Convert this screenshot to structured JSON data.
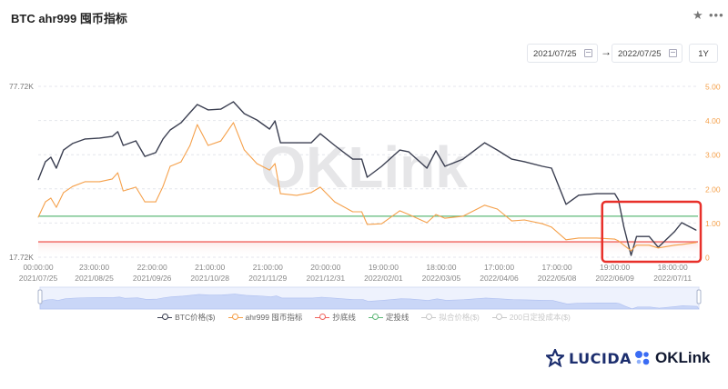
{
  "header": {
    "title": "BTC ahr999 囤币指标",
    "star_icon": "star-icon",
    "more_icon": "more-icon"
  },
  "controls": {
    "start_date": "2021/07/25",
    "end_date": "2022/07/25",
    "arrow": "→",
    "range_label": "1Y"
  },
  "watermark": "OKLink",
  "legend": [
    {
      "label": "BTC价格($)",
      "color": "#3b3f51",
      "active": true
    },
    {
      "label": "ahr999 囤币指标",
      "color": "#f5a04a",
      "active": true
    },
    {
      "label": "抄底线",
      "color": "#f0625c",
      "active": true
    },
    {
      "label": "定投线",
      "color": "#5fb878",
      "active": true
    },
    {
      "label": "拟合价格($)",
      "color": "#c8c8c8",
      "active": false
    },
    {
      "label": "200日定投成本($)",
      "color": "#c8c8c8",
      "active": false
    }
  ],
  "branding": {
    "lucida": "LUCIDA",
    "oklink": "OKLink"
  },
  "chart_data": {
    "type": "line",
    "x_ticks": [
      {
        "time": "00:00:00",
        "date": "2021/07/25"
      },
      {
        "time": "23:00:00",
        "date": "2021/08/25"
      },
      {
        "time": "22:00:00",
        "date": "2021/09/26"
      },
      {
        "time": "21:00:00",
        "date": "2021/10/28"
      },
      {
        "time": "21:00:00",
        "date": "2021/11/29"
      },
      {
        "time": "20:00:00",
        "date": "2021/12/31"
      },
      {
        "time": "19:00:00",
        "date": "2022/02/01"
      },
      {
        "time": "18:00:00",
        "date": "2022/03/05"
      },
      {
        "time": "17:00:00",
        "date": "2022/04/06"
      },
      {
        "time": "17:00:00",
        "date": "2022/05/08"
      },
      {
        "time": "19:00:00",
        "date": "2022/06/09"
      },
      {
        "time": "18:00:00",
        "date": "2022/07/11"
      }
    ],
    "xlim": [
      "2021-07-25",
      "2022-07-25"
    ],
    "left_axis": {
      "scale": "log",
      "range": [
        17.72,
        77.72
      ],
      "unit": "K",
      "tick_labels": [
        "77.72K",
        "17.72K"
      ]
    },
    "right_axis": {
      "scale": "linear",
      "range": [
        0,
        5
      ],
      "tick_labels": [
        "5.00",
        "4.00",
        "3.00",
        "2.00",
        "1.00",
        "0"
      ]
    },
    "grid": true,
    "x": [
      "2021-07-25",
      "2021-07-29",
      "2021-08-01",
      "2021-08-04",
      "2021-08-08",
      "2021-08-13",
      "2021-08-20",
      "2021-08-28",
      "2021-09-04",
      "2021-09-07",
      "2021-09-10",
      "2021-09-17",
      "2021-09-22",
      "2021-09-28",
      "2021-10-02",
      "2021-10-06",
      "2021-10-12",
      "2021-10-17",
      "2021-10-21",
      "2021-10-27",
      "2021-11-03",
      "2021-11-10",
      "2021-11-16",
      "2021-11-23",
      "2021-11-30",
      "2021-12-03",
      "2021-12-06",
      "2021-12-15",
      "2021-12-23",
      "2021-12-28",
      "2022-01-05",
      "2022-01-15",
      "2022-01-20",
      "2022-01-23",
      "2022-01-31",
      "2022-02-10",
      "2022-02-15",
      "2022-02-25",
      "2022-03-02",
      "2022-03-07",
      "2022-03-17",
      "2022-03-29",
      "2022-04-05",
      "2022-04-13",
      "2022-04-20",
      "2022-04-30",
      "2022-05-05",
      "2022-05-13",
      "2022-05-20",
      "2022-05-30",
      "2022-06-09",
      "2022-06-11",
      "2022-06-14",
      "2022-06-18",
      "2022-06-21",
      "2022-06-28",
      "2022-07-03",
      "2022-07-12",
      "2022-07-16",
      "2022-07-24"
    ],
    "series": [
      {
        "name": "BTC价格($)",
        "axis": "left",
        "color": "#3b3f51",
        "values": [
          34.6,
          40.5,
          42.1,
          38.3,
          44.8,
          47.4,
          49.3,
          49.7,
          50.4,
          52.5,
          46.6,
          48.5,
          42.4,
          43.8,
          49.3,
          53.3,
          56.7,
          61.9,
          66.4,
          63.4,
          63.8,
          68.0,
          61.4,
          58.1,
          53.7,
          57.6,
          47.7,
          47.7,
          47.7,
          51.6,
          46.6,
          41.4,
          41.4,
          35.4,
          38.9,
          44.8,
          44.1,
          38.3,
          44.5,
          38.9,
          41.4,
          47.7,
          44.8,
          41.4,
          40.5,
          38.9,
          38.3,
          28.0,
          30.3,
          30.7,
          30.7,
          29.1,
          23.0,
          18.0,
          21.2,
          21.2,
          19.3,
          22.1,
          23.9,
          22.4
        ]
      },
      {
        "name": "ahr999 囤币指标",
        "axis": "right",
        "color": "#f5a04a",
        "values": [
          1.17,
          1.62,
          1.73,
          1.46,
          1.89,
          2.07,
          2.21,
          2.21,
          2.29,
          2.47,
          1.94,
          2.05,
          1.62,
          1.62,
          2.07,
          2.66,
          2.79,
          3.27,
          3.88,
          3.27,
          3.4,
          3.94,
          3.14,
          2.74,
          2.55,
          2.74,
          1.86,
          1.81,
          1.89,
          2.05,
          1.62,
          1.33,
          1.33,
          0.96,
          0.98,
          1.36,
          1.25,
          1.01,
          1.25,
          1.14,
          1.2,
          1.52,
          1.41,
          1.06,
          1.09,
          0.98,
          0.88,
          0.51,
          0.56,
          0.56,
          0.53,
          0.48,
          0.35,
          0.19,
          0.35,
          0.35,
          0.27,
          0.35,
          0.37,
          0.43
        ]
      },
      {
        "name": "抄底线",
        "axis": "right",
        "color": "#f0625c",
        "constant": 0.45
      },
      {
        "name": "定投线",
        "axis": "right",
        "color": "#5fb878",
        "constant": 1.2
      }
    ],
    "highlight_box": {
      "from": "2022-06-01",
      "to": "2022-07-25",
      "color": "#e8302a"
    }
  }
}
